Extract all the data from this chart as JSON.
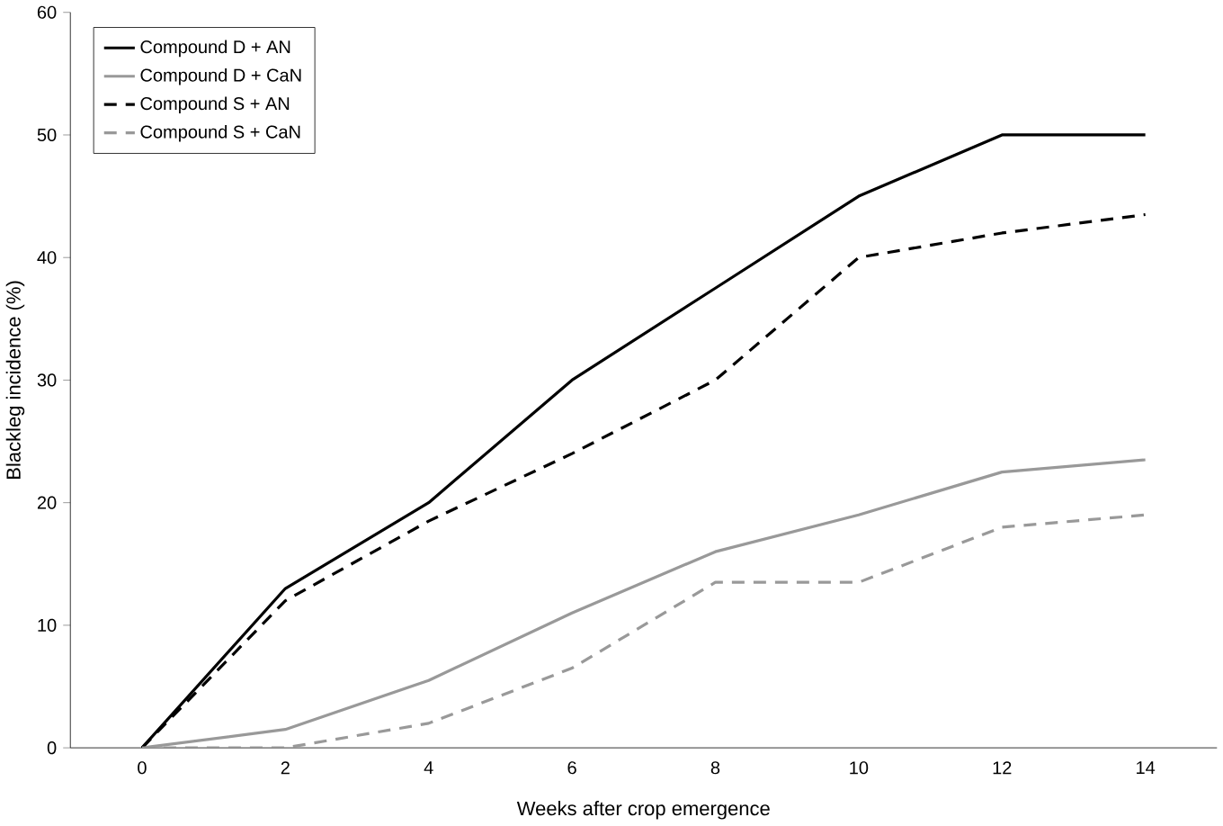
{
  "chart_data": {
    "type": "line",
    "xlabel": "Weeks after crop emergence",
    "ylabel": "Blackleg incidence (%)",
    "categories": [
      "0",
      "2",
      "4",
      "6",
      "8",
      "10",
      "12",
      "14"
    ],
    "series": [
      {
        "name": "Compound D + AN",
        "color": "#000000",
        "line_style": "solid",
        "values": [
          0,
          13,
          20,
          30,
          37.5,
          45,
          50,
          50
        ]
      },
      {
        "name": "Compound D + CaN",
        "color": "#999999",
        "line_style": "solid",
        "values": [
          0,
          1.5,
          5.5,
          11,
          16,
          19,
          22.5,
          23.5
        ]
      },
      {
        "name": "Compound S + AN",
        "color": "#000000",
        "line_style": "dashed",
        "values": [
          0,
          12,
          18.5,
          24,
          30,
          40,
          42,
          43.5
        ]
      },
      {
        "name": "Compound S + CaN",
        "color": "#999999",
        "line_style": "dashed",
        "values": [
          0,
          0,
          2,
          6.5,
          13.5,
          13.5,
          18,
          19
        ]
      }
    ],
    "ylim": [
      0,
      60
    ],
    "yticks": [
      0,
      10,
      20,
      30,
      40,
      50,
      60
    ],
    "grid": false,
    "legend": "top left",
    "marker": "none"
  }
}
